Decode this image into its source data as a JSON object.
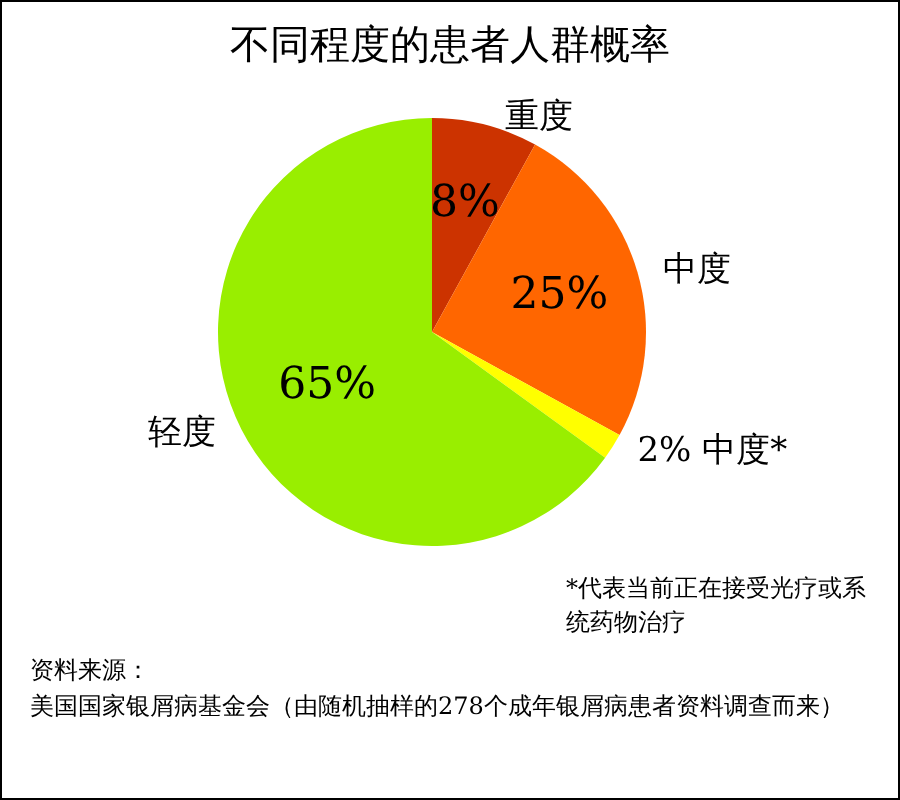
{
  "chart_data": {
    "type": "pie",
    "title": "不同程度的患者人群概率",
    "categories": [
      "重度",
      "中度",
      "中度*",
      "轻度"
    ],
    "values": [
      8,
      25,
      2,
      65
    ],
    "value_labels": [
      "8%",
      "25%",
      "2%",
      "65%"
    ],
    "colors": [
      "#cc3300",
      "#ff6600",
      "#ffff00",
      "#99ee00"
    ],
    "legend": false,
    "annotations": [
      "*代表当前正在接受光疗或系统药物治疗",
      "资料来源：",
      "美国国家银屑病基金会（由随机抽样的278个成年银屑病患者资料调查而来）"
    ]
  }
}
